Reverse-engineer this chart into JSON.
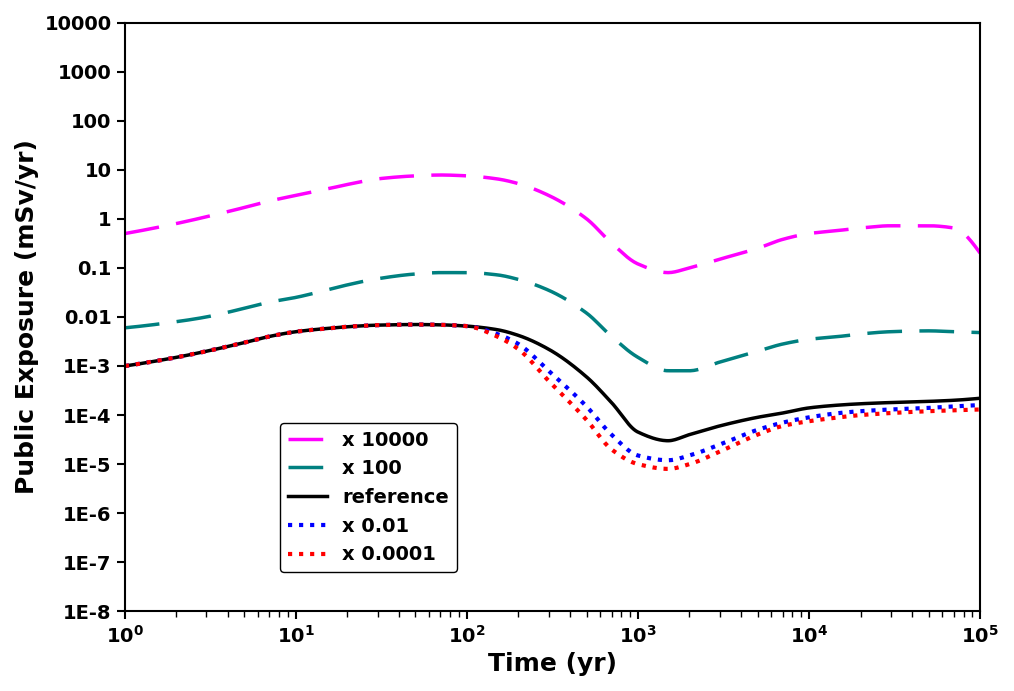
{
  "title": "",
  "xlabel": "Time (yr)",
  "ylabel": "Public Exposure (mSv/yr)",
  "xlim": [
    1,
    100000
  ],
  "ylim": [
    1e-08,
    10000
  ],
  "background_color": "#ffffff",
  "legend_labels": [
    "x 10000",
    "x 100",
    "reference",
    "x 0.01",
    "x 0.0001"
  ],
  "legend_colors": [
    "#ff00ff",
    "#008080",
    "#000000",
    "#0000ff",
    "#ff0000"
  ],
  "font_size_label": 18,
  "font_size_tick": 14,
  "font_size_legend": 14,
  "line_width": 2.5,
  "ref_x": [
    1,
    2,
    3,
    5,
    7,
    10,
    15,
    20,
    30,
    50,
    70,
    100,
    150,
    200,
    300,
    500,
    700,
    1000,
    1500,
    2000,
    3000,
    5000,
    7000,
    10000,
    15000,
    20000,
    30000,
    50000,
    70000,
    100000
  ],
  "ref_y": [
    0.001,
    0.0015,
    0.002,
    0.003,
    0.004,
    0.005,
    0.0058,
    0.0063,
    0.0068,
    0.007,
    0.0069,
    0.0065,
    0.0055,
    0.0042,
    0.0022,
    0.0006,
    0.00018,
    4.5e-05,
    3e-05,
    4e-05,
    6e-05,
    9e-05,
    0.00011,
    0.00014,
    0.00016,
    0.00017,
    0.00018,
    0.00019,
    0.0002,
    0.00022
  ],
  "x100_x": [
    1,
    2,
    3,
    5,
    7,
    10,
    15,
    20,
    30,
    50,
    70,
    100,
    150,
    200,
    300,
    500,
    700,
    1000,
    1500,
    2000,
    3000,
    5000,
    7000,
    10000,
    15000,
    20000,
    30000,
    50000,
    70000,
    100000
  ],
  "x100_y": [
    0.006,
    0.008,
    0.01,
    0.015,
    0.02,
    0.025,
    0.035,
    0.045,
    0.06,
    0.075,
    0.08,
    0.08,
    0.072,
    0.058,
    0.035,
    0.012,
    0.004,
    0.0015,
    0.0008,
    0.0008,
    0.0012,
    0.002,
    0.0028,
    0.0035,
    0.004,
    0.0045,
    0.005,
    0.0052,
    0.005,
    0.0048
  ],
  "x10000_x": [
    1,
    2,
    3,
    5,
    7,
    10,
    15,
    20,
    30,
    50,
    70,
    100,
    150,
    200,
    300,
    500,
    700,
    1000,
    1500,
    2000,
    3000,
    5000,
    7000,
    10000,
    15000,
    20000,
    30000,
    50000,
    70000,
    100000
  ],
  "x10000_y": [
    0.5,
    0.8,
    1.1,
    1.7,
    2.3,
    3.0,
    4.0,
    5.0,
    6.5,
    7.5,
    7.8,
    7.5,
    6.5,
    5.2,
    3.0,
    1.0,
    0.32,
    0.12,
    0.08,
    0.1,
    0.15,
    0.25,
    0.38,
    0.5,
    0.58,
    0.65,
    0.72,
    0.72,
    0.65,
    0.2
  ],
  "x001_x": [
    1,
    2,
    3,
    5,
    7,
    10,
    15,
    20,
    30,
    50,
    70,
    100,
    150,
    200,
    300,
    500,
    700,
    1000,
    1500,
    2000,
    3000,
    5000,
    7000,
    10000,
    15000,
    20000,
    30000,
    50000,
    70000,
    100000
  ],
  "x001_y": [
    0.001,
    0.0015,
    0.002,
    0.003,
    0.004,
    0.005,
    0.0058,
    0.0063,
    0.0068,
    0.007,
    0.0069,
    0.0065,
    0.0045,
    0.0028,
    0.0008,
    0.00015,
    4e-05,
    1.5e-05,
    1.2e-05,
    1.5e-05,
    2.5e-05,
    5e-05,
    7e-05,
    9e-05,
    0.00011,
    0.00012,
    0.00013,
    0.00014,
    0.00015,
    0.00016
  ],
  "x00001_x": [
    1,
    2,
    3,
    5,
    7,
    10,
    15,
    20,
    30,
    50,
    70,
    100,
    150,
    200,
    300,
    500,
    700,
    1000,
    1500,
    2000,
    3000,
    5000,
    7000,
    10000,
    15000,
    20000,
    30000,
    50000,
    70000,
    100000
  ],
  "x00001_y": [
    0.001,
    0.0015,
    0.002,
    0.003,
    0.004,
    0.005,
    0.0058,
    0.0063,
    0.0068,
    0.007,
    0.0069,
    0.0065,
    0.004,
    0.0022,
    0.0005,
    8e-05,
    2e-05,
    1e-05,
    8e-06,
    1e-05,
    1.8e-05,
    4e-05,
    6e-05,
    7.5e-05,
    9e-05,
    0.0001,
    0.00011,
    0.00012,
    0.000125,
    0.00013
  ],
  "ytick_vals": [
    1e-08,
    1e-07,
    1e-06,
    1e-05,
    0.0001,
    0.001,
    0.01,
    0.1,
    1,
    10,
    100,
    1000,
    10000
  ],
  "ytick_labels": [
    "1E-8",
    "1E-7",
    "1E-6",
    "1E-5",
    "1E-4",
    "1E-3",
    "0.01",
    "0.1",
    "1",
    "10",
    "100",
    "1000",
    "10000"
  ]
}
